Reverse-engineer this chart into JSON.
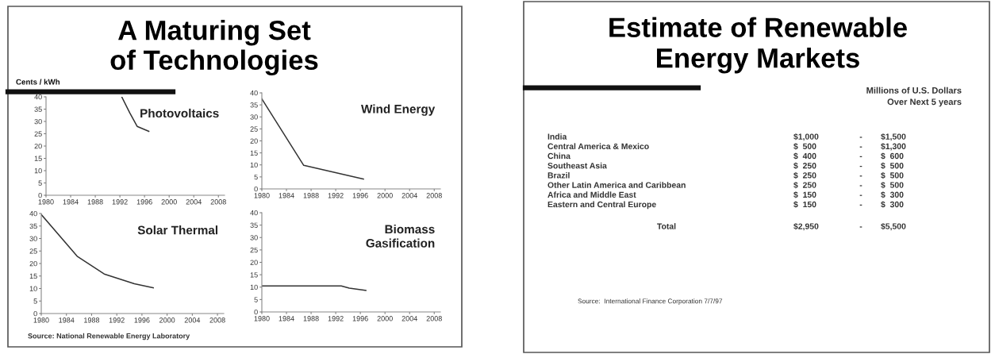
{
  "chart_data": [
    {
      "type": "line",
      "title": "Photovoltaics",
      "ylabel": "Cents / kWh",
      "annotations": [
        "A Maturing Set of Technologies",
        "Source: National Renewable Energy Laboratory"
      ],
      "color": "#333333",
      "x": [
        1992.3,
        1993.6,
        1994.8,
        1996.7
      ],
      "values": [
        40,
        33.5,
        28,
        26
      ],
      "xlim": [
        1980,
        2009
      ],
      "xticks": [
        1980,
        1984,
        1988,
        1992,
        1996,
        2000,
        2004,
        2008
      ],
      "ylim": [
        0,
        40
      ],
      "yticks": [
        0,
        5,
        10,
        15,
        20,
        25,
        30,
        35,
        40
      ],
      "grid": false
    },
    {
      "type": "line",
      "title": "Wind Energy",
      "color": "#333333",
      "x": [
        1980,
        1986.8,
        1996.5
      ],
      "values": [
        37.5,
        9.8,
        4.1
      ],
      "xlim": [
        1980,
        2009
      ],
      "xticks": [
        1980,
        1984,
        1988,
        1992,
        1996,
        2000,
        2004,
        2008
      ],
      "ylim": [
        0,
        40
      ],
      "yticks": [
        0,
        5,
        10,
        15,
        20,
        25,
        30,
        35,
        40
      ],
      "grid": false
    },
    {
      "type": "line",
      "title": "Solar Thermal",
      "color": "#333333",
      "x": [
        1980,
        1985.7,
        1990,
        1994.8,
        1997.8
      ],
      "values": [
        39.6,
        22.9,
        15.8,
        11.9,
        10.3
      ],
      "xlim": [
        1980,
        2009
      ],
      "xticks": [
        1980,
        1984,
        1988,
        1992,
        1996,
        2000,
        2004,
        2008
      ],
      "ylim": [
        0,
        40
      ],
      "yticks": [
        0,
        5,
        10,
        15,
        20,
        25,
        30,
        35,
        40
      ],
      "grid": false
    },
    {
      "type": "line",
      "title": "Biomass\nGasification",
      "color": "#333333",
      "x": [
        1980,
        1992.9,
        1994.2,
        1996.9
      ],
      "values": [
        10.5,
        10.5,
        9.6,
        8.7
      ],
      "xlim": [
        1980,
        2009
      ],
      "xticks": [
        1980,
        1984,
        1988,
        1992,
        1996,
        2000,
        2004,
        2008
      ],
      "ylim": [
        0,
        40
      ],
      "yticks": [
        0,
        5,
        10,
        15,
        20,
        25,
        30,
        35,
        40
      ],
      "grid": false
    },
    {
      "type": "other",
      "title": "Estimate of Renewable\nEnergy Markets",
      "subtitle": "Millions of U.S. Dollars\nOver Next 5 years",
      "annotations": [
        "India",
        "$1,000",
        "-",
        "$1,500",
        "Central America & Mexico",
        "$  500",
        "-",
        "$1,300",
        "China",
        "$  400",
        "-",
        "$  600",
        "Southeast Asia",
        "$  250",
        "-",
        "$  500",
        "Brazil",
        "$  250",
        "-",
        "$  500",
        "Other Latin America and Caribbean",
        "$  250",
        "-",
        "$  500",
        "Africa and Middle East",
        "$  150",
        "-",
        "$  300",
        "Eastern and Central Europe",
        "$  150",
        "-",
        "$  300",
        "Total",
        "$2,950",
        "-",
        "$5,500",
        "Source:  International Finance Corporation 7/7/97"
      ]
    }
  ]
}
